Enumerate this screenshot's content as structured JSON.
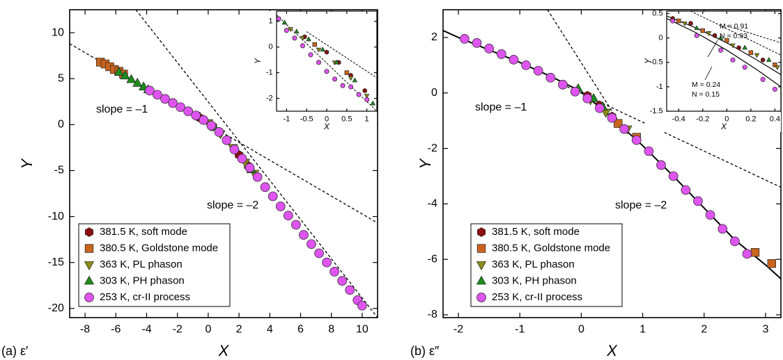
{
  "chart_data": [
    {
      "type": "scatter",
      "panel_label": "(a) ε′",
      "xlabel": "X",
      "ylabel": "Y",
      "xlim": [
        -9,
        11
      ],
      "ylim": [
        -21,
        12.5
      ],
      "xticks": [
        -8,
        -6,
        -4,
        -2,
        0,
        2,
        4,
        6,
        8,
        10
      ],
      "yticks": [
        -20,
        -15,
        -10,
        -5,
        0,
        5,
        10
      ],
      "series": [
        {
          "name": "381.5 K, soft mode",
          "color": "#8b1010",
          "marker": "hexagon",
          "x": [
            -0.5,
            0.3,
            1.2,
            2.0,
            2.6
          ],
          "y": [
            0.7,
            -0.2,
            -1.7,
            -3.3,
            -4.5
          ]
        },
        {
          "name": "380.5 K, Goldstone mode",
          "color": "#c8641e",
          "marker": "square",
          "x": [
            -7.0,
            -6.7,
            -6.4,
            -6.1,
            -5.8,
            -5.5
          ],
          "y": [
            6.8,
            6.6,
            6.3,
            6.0,
            5.8,
            5.5
          ]
        },
        {
          "name": "363 K, PL phason",
          "color": "#8c8c14",
          "marker": "triangle-down",
          "x": [
            -0.8,
            0.0,
            0.8,
            1.6,
            2.4,
            3.0
          ],
          "y": [
            1.0,
            0.2,
            -1.0,
            -2.5,
            -4.1,
            -5.3
          ]
        },
        {
          "name": "303 K, PH phason",
          "color": "#1e8c1e",
          "marker": "triangle-up",
          "x": [
            -5.8,
            -5.4,
            -5.0,
            -4.6,
            -4.2,
            -3.9,
            0.4,
            2.8
          ],
          "y": [
            5.7,
            5.3,
            4.9,
            4.5,
            4.1,
            3.8,
            -0.3,
            -4.9
          ]
        },
        {
          "name": "253 K, cr-II process",
          "color": "#dd55ee",
          "marker": "circle",
          "x": [
            -3.8,
            -3.3,
            -2.8,
            -2.3,
            -1.8,
            -1.3,
            -0.8,
            -0.3,
            0.2,
            0.7,
            1.2,
            1.7,
            2.2,
            2.7,
            3.2,
            3.7,
            4.2,
            4.7,
            5.2,
            5.7,
            6.2,
            6.7,
            7.2,
            7.7,
            8.2,
            8.7,
            9.2,
            9.7,
            10.0
          ],
          "y": [
            3.7,
            3.25,
            2.8,
            2.35,
            1.9,
            1.45,
            1.0,
            0.5,
            -0.1,
            -0.8,
            -1.7,
            -2.7,
            -3.7,
            -4.7,
            -5.7,
            -6.8,
            -7.8,
            -8.9,
            -9.9,
            -10.9,
            -12.0,
            -13.0,
            -14.0,
            -15.0,
            -16.0,
            -17.0,
            -18.0,
            -19.1,
            -19.7
          ]
        }
      ],
      "reference_lines": [
        {
          "x": [
            -9,
            11
          ],
          "y": [
            8.8,
            -10.7
          ]
        },
        {
          "x": [
            -4.7,
            11
          ],
          "y": [
            12.5,
            -21
          ]
        }
      ],
      "annotations": [
        "slope = –1",
        "slope = –2"
      ],
      "inset": {
        "xlabel": "X",
        "ylabel": "Y",
        "xlim": [
          -1.25,
          1.25
        ],
        "ylim": [
          -2.5,
          1.4
        ],
        "xticks": [
          -1,
          -0.5,
          0,
          0.5,
          1
        ],
        "yticks": [
          -2,
          -1,
          0,
          1
        ],
        "series": [
          {
            "x": [
              -0.55,
              0,
              0.3,
              0.6,
              0.95
            ],
            "y": [
              0.4,
              -0.2,
              -0.6,
              -1.1,
              -1.7
            ]
          },
          {
            "x": [
              -0.3,
              0.5
            ],
            "y": [
              0.1,
              -1.0
            ]
          },
          {
            "x": [
              -1.2,
              -0.9,
              -0.6,
              -0.2,
              0.2,
              0.6,
              1.0
            ],
            "y": [
              1.1,
              0.7,
              0.35,
              -0.1,
              -0.6,
              -1.2,
              -1.9
            ]
          },
          {
            "x": [
              -1.05,
              -0.75,
              -0.45,
              -0.1,
              0.25,
              0.7,
              1.15
            ],
            "y": [
              0.95,
              0.6,
              0.3,
              -0.1,
              -0.6,
              -1.3,
              -2.2
            ]
          },
          {
            "x": [
              -1.2,
              -1.0,
              -0.8,
              -0.6,
              -0.4,
              -0.2,
              0,
              0.2,
              0.4,
              0.6,
              0.8,
              1.0
            ],
            "y": [
              1.1,
              0.65,
              0.35,
              0.05,
              -0.3,
              -0.6,
              -0.95,
              -1.25,
              -1.5,
              -1.55,
              -1.85,
              -2.05
            ]
          }
        ],
        "reference_lines": [
          {
            "x": [
              -1.25,
              1.25
            ],
            "y": [
              1.25,
              -2.5
            ]
          },
          {
            "x": [
              -0.5,
              1.25
            ],
            "y": [
              0.6,
              -1.2
            ]
          }
        ]
      }
    },
    {
      "type": "scatter",
      "panel_label": "(b) ε″",
      "xlabel": "X",
      "ylabel": "Y",
      "xlim": [
        -2.25,
        3.25
      ],
      "ylim": [
        -8.1,
        3
      ],
      "xticks": [
        -2,
        -1,
        0,
        1,
        2,
        3
      ],
      "yticks": [
        -8,
        -6,
        -4,
        -2,
        0,
        2
      ],
      "series": [
        {
          "name": "381.5 K, soft mode",
          "color": "#8b1010",
          "marker": "hexagon",
          "x": [
            0.1,
            0.3,
            0.5
          ],
          "y": [
            -0.1,
            -0.45,
            -0.85
          ]
        },
        {
          "name": "380.5 K, Goldstone mode",
          "color": "#c8641e",
          "marker": "square",
          "x": [
            0.6,
            0.9,
            2.83,
            3.1
          ],
          "y": [
            -1.1,
            -1.6,
            -5.75,
            -6.15
          ]
        },
        {
          "name": "363 K, PL phason",
          "color": "#8c8c14",
          "marker": "triangle-down",
          "x": [
            0.15,
            0.4,
            0.75
          ],
          "y": [
            -0.25,
            -0.7,
            -1.3
          ]
        },
        {
          "name": "303 K, PH phason",
          "color": "#1e8c1e",
          "marker": "triangle-up",
          "x": [
            -0.05,
            0.2,
            0.35
          ],
          "y": [
            0.15,
            -0.2,
            -0.5
          ]
        },
        {
          "name": "253 K, cr-II process",
          "color": "#dd55ee",
          "marker": "circle",
          "x": [
            -1.9,
            -1.7,
            -1.5,
            -1.3,
            -1.1,
            -0.9,
            -0.7,
            -0.5,
            -0.3,
            -0.1,
            0.1,
            0.3,
            0.5,
            0.7,
            0.9,
            1.1,
            1.3,
            1.5,
            1.7,
            1.9,
            2.1,
            2.3,
            2.5,
            2.7
          ],
          "y": [
            1.95,
            1.8,
            1.6,
            1.4,
            1.2,
            1.0,
            0.8,
            0.55,
            0.3,
            0.05,
            -0.2,
            -0.55,
            -0.9,
            -1.3,
            -1.7,
            -2.1,
            -2.6,
            -3.0,
            -3.5,
            -3.9,
            -4.4,
            -4.9,
            -5.35,
            -5.8
          ]
        }
      ],
      "fit_curves": [
        {
          "x": [
            -2.25,
            -2,
            -1.5,
            -1,
            -0.5,
            0,
            0.5,
            1,
            1.5,
            2,
            2.5,
            3,
            3.25
          ],
          "y": [
            2.25,
            2.0,
            1.55,
            1.1,
            0.6,
            0.05,
            -0.9,
            -1.9,
            -3.0,
            -4.15,
            -5.3,
            -6.2,
            -6.7
          ]
        }
      ],
      "reference_lines": [
        {
          "x": [
            -0.55,
            0.6
          ],
          "y": [
            3,
            -1.0
          ]
        },
        {
          "x": [
            -0.3,
            3.25
          ],
          "y": [
            0.3,
            -3.4
          ]
        }
      ],
      "annotations": [
        "slope = –1",
        "slope = –2"
      ],
      "inset": {
        "xlabel": "X",
        "ylabel": "Y",
        "xlim": [
          -0.5,
          0.45
        ],
        "ylim": [
          -1.5,
          0.55
        ],
        "xticks": [
          -0.4,
          -0.2,
          0,
          0.2,
          0.4
        ],
        "yticks": [
          -1.5,
          -1,
          -0.5,
          0,
          0.5
        ],
        "series": [
          {
            "x": [
              -0.45,
              -0.3,
              -0.1,
              0.1,
              0.3
            ],
            "y": [
              0.4,
              0.3,
              0.05,
              -0.2,
              -0.45
            ]
          },
          {
            "x": [
              -0.4,
              -0.2,
              0.0,
              0.2,
              0.4
            ],
            "y": [
              0.35,
              0.15,
              -0.05,
              -0.3,
              -0.55
            ]
          },
          {
            "x": [
              -0.35,
              -0.15,
              0.05,
              0.25,
              0.42
            ],
            "y": [
              0.3,
              0.1,
              -0.15,
              -0.35,
              -0.6
            ]
          },
          {
            "x": [
              -0.25,
              -0.05,
              0.15,
              0.35
            ],
            "y": [
              0.2,
              0.0,
              -0.2,
              -0.45
            ]
          },
          {
            "x": [
              -0.45,
              -0.25,
              -0.05,
              0.05,
              0.15,
              0.3,
              0.4
            ],
            "y": [
              0.35,
              0.05,
              -0.25,
              -0.45,
              -0.6,
              -0.85,
              -1.05
            ]
          }
        ],
        "fit_curves": [
          {
            "x": [
              -0.5,
              -0.25,
              0,
              0.25,
              0.45
            ],
            "y": [
              0.45,
              0.2,
              -0.1,
              -0.45,
              -0.75
            ]
          },
          {
            "x": [
              -0.5,
              -0.25,
              0,
              0.25,
              0.45
            ],
            "y": [
              0.4,
              0.1,
              -0.25,
              -0.65,
              -1.0
            ]
          }
        ],
        "reference_lines": [
          {
            "x": [
              -0.3,
              0.45
            ],
            "y": [
              0.55,
              -0.35
            ]
          },
          {
            "x": [
              0,
              0.45
            ],
            "y": [
              0.25,
              -0.1
            ]
          }
        ],
        "annotations": [
          "M = 0.91",
          "N = 0.93",
          "M = 0.24",
          "N = 0.15"
        ]
      }
    }
  ]
}
